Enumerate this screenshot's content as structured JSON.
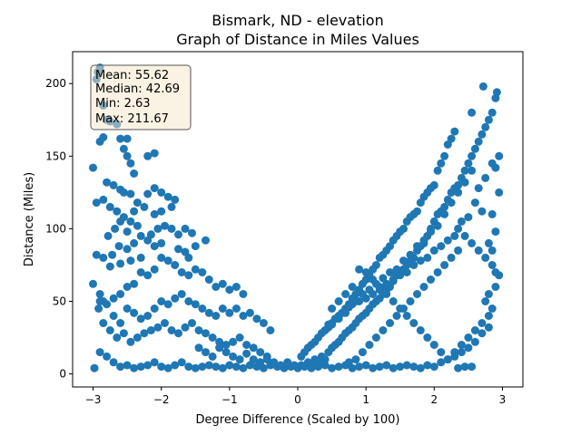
{
  "chart_data": {
    "type": "scatter",
    "title_line1": "Bismark, ND - elevation",
    "title_line2": "Graph of Distance in Miles Values",
    "xlabel": "Degree Difference (Scaled by 100)",
    "ylabel": "Distance (Miles)",
    "xlim": [
      -3.3,
      3.3
    ],
    "ylim": [
      -9,
      222
    ],
    "xticks": [
      -3,
      -2,
      -1,
      0,
      1,
      2,
      3
    ],
    "yticks": [
      0,
      50,
      100,
      150,
      200
    ],
    "grid": false,
    "point_color": "#1f77b4",
    "stats": {
      "mean": "Mean: 55.62",
      "median": "Median: 42.69",
      "min": "Min: 2.63",
      "max": "Max: 211.67"
    },
    "stats_box_fill": "#f5e6c8",
    "points": [
      [
        -2.9,
        211
      ],
      [
        -2.93,
        208
      ],
      [
        -2.95,
        203
      ],
      [
        -2.85,
        185
      ],
      [
        -2.8,
        175
      ],
      [
        -2.75,
        174
      ],
      [
        -2.65,
        172
      ],
      [
        -2.85,
        163
      ],
      [
        -2.9,
        160
      ],
      [
        -2.6,
        162
      ],
      [
        -2.5,
        162
      ],
      [
        -2.55,
        155
      ],
      [
        -2.45,
        145
      ],
      [
        -2.4,
        138
      ],
      [
        -2.5,
        150
      ],
      [
        -2.2,
        150
      ],
      [
        -2.1,
        152
      ],
      [
        -3.0,
        142
      ],
      [
        -2.95,
        118
      ],
      [
        -2.8,
        132
      ],
      [
        -2.7,
        130
      ],
      [
        -2.6,
        127
      ],
      [
        -2.55,
        125
      ],
      [
        -2.45,
        124
      ],
      [
        -2.35,
        118
      ],
      [
        -2.2,
        124
      ],
      [
        -2.1,
        128
      ],
      [
        -2.0,
        125
      ],
      [
        -1.9,
        122
      ],
      [
        -1.8,
        120
      ],
      [
        -1.85,
        115
      ],
      [
        -2.0,
        112
      ],
      [
        -2.1,
        110
      ],
      [
        -2.25,
        115
      ],
      [
        -2.4,
        112
      ],
      [
        -2.55,
        108
      ],
      [
        -2.65,
        112
      ],
      [
        -2.75,
        115
      ],
      [
        -2.85,
        120
      ],
      [
        -2.78,
        95
      ],
      [
        -2.68,
        100
      ],
      [
        -2.6,
        105
      ],
      [
        -2.5,
        98
      ],
      [
        -2.45,
        105
      ],
      [
        -2.35,
        102
      ],
      [
        -2.3,
        95
      ],
      [
        -2.15,
        96
      ],
      [
        -2.05,
        100
      ],
      [
        -1.95,
        102
      ],
      [
        -1.85,
        100
      ],
      [
        -1.75,
        96
      ],
      [
        -1.65,
        100
      ],
      [
        -1.55,
        97
      ],
      [
        -2.0,
        90
      ],
      [
        -2.1,
        88
      ],
      [
        -2.2,
        92
      ],
      [
        -2.4,
        90
      ],
      [
        -2.5,
        86
      ],
      [
        -2.62,
        88
      ],
      [
        -2.72,
        82
      ],
      [
        -2.85,
        80
      ],
      [
        -2.95,
        82
      ],
      [
        -3.0,
        62
      ],
      [
        -2.9,
        55
      ],
      [
        -2.85,
        50
      ],
      [
        -2.8,
        48
      ],
      [
        -2.7,
        52
      ],
      [
        -2.6,
        55
      ],
      [
        -2.5,
        60
      ],
      [
        -2.4,
        62
      ],
      [
        -2.3,
        70
      ],
      [
        -2.2,
        68
      ],
      [
        -2.1,
        72
      ],
      [
        -2.0,
        80
      ],
      [
        -1.9,
        78
      ],
      [
        -1.8,
        75
      ],
      [
        -1.7,
        70
      ],
      [
        -1.6,
        68
      ],
      [
        -1.5,
        72
      ],
      [
        -1.4,
        70
      ],
      [
        -1.3,
        65
      ],
      [
        -1.2,
        60
      ],
      [
        -1.1,
        62
      ],
      [
        -1.0,
        58
      ],
      [
        -0.9,
        60
      ],
      [
        -0.8,
        55
      ],
      [
        -1.75,
        86
      ],
      [
        -1.65,
        84
      ],
      [
        -1.5,
        88
      ],
      [
        -1.35,
        92
      ],
      [
        -1.6,
        80
      ],
      [
        -2.3,
        80
      ],
      [
        -2.45,
        78
      ],
      [
        -2.6,
        76
      ],
      [
        -2.75,
        74
      ],
      [
        -2.9,
        50
      ],
      [
        -2.92,
        45
      ],
      [
        -2.7,
        40
      ],
      [
        -2.6,
        35
      ],
      [
        -2.5,
        45
      ],
      [
        -2.4,
        42
      ],
      [
        -2.3,
        38
      ],
      [
        -2.2,
        40
      ],
      [
        -2.1,
        45
      ],
      [
        -2.0,
        50
      ],
      [
        -1.9,
        48
      ],
      [
        -1.8,
        52
      ],
      [
        -1.7,
        55
      ],
      [
        -1.6,
        50
      ],
      [
        -1.5,
        48
      ],
      [
        -1.4,
        45
      ],
      [
        -1.3,
        42
      ],
      [
        -1.2,
        40
      ],
      [
        -1.1,
        45
      ],
      [
        -1.0,
        42
      ],
      [
        -0.9,
        45
      ],
      [
        -0.8,
        40
      ],
      [
        -0.7,
        42
      ],
      [
        -0.6,
        38
      ],
      [
        -0.5,
        35
      ],
      [
        -0.4,
        30
      ],
      [
        -2.85,
        35
      ],
      [
        -2.75,
        30
      ],
      [
        -2.65,
        25
      ],
      [
        -2.55,
        28
      ],
      [
        -2.45,
        22
      ],
      [
        -2.35,
        25
      ],
      [
        -2.25,
        28
      ],
      [
        -2.15,
        30
      ],
      [
        -2.05,
        32
      ],
      [
        -1.95,
        35
      ],
      [
        -1.85,
        30
      ],
      [
        -1.75,
        28
      ],
      [
        -1.65,
        32
      ],
      [
        -1.55,
        35
      ],
      [
        -1.45,
        30
      ],
      [
        -1.35,
        28
      ],
      [
        -1.25,
        25
      ],
      [
        -1.15,
        22
      ],
      [
        -1.05,
        20
      ],
      [
        -0.95,
        22
      ],
      [
        -0.85,
        25
      ],
      [
        -0.75,
        20
      ],
      [
        -0.65,
        18
      ],
      [
        -0.55,
        15
      ],
      [
        -0.45,
        12
      ],
      [
        -2.9,
        15
      ],
      [
        -2.8,
        12
      ],
      [
        -2.7,
        8
      ],
      [
        -2.6,
        5
      ],
      [
        -2.5,
        6
      ],
      [
        -2.4,
        4
      ],
      [
        -2.3,
        5
      ],
      [
        -2.2,
        6
      ],
      [
        -2.1,
        8
      ],
      [
        -2.0,
        5
      ],
      [
        -1.9,
        4
      ],
      [
        -1.8,
        6
      ],
      [
        -1.7,
        8
      ],
      [
        -1.6,
        5
      ],
      [
        -1.5,
        4
      ],
      [
        -1.4,
        5
      ],
      [
        -1.3,
        6
      ],
      [
        -1.2,
        5
      ],
      [
        -1.1,
        4
      ],
      [
        -1.0,
        6
      ],
      [
        -0.9,
        5
      ],
      [
        -0.8,
        4
      ],
      [
        -0.7,
        6
      ],
      [
        -0.6,
        5
      ],
      [
        -0.5,
        4
      ],
      [
        -0.4,
        6
      ],
      [
        -0.3,
        5
      ],
      [
        -0.2,
        4
      ],
      [
        -0.1,
        5
      ],
      [
        -2.98,
        4
      ],
      [
        -1.45,
        18
      ],
      [
        -1.35,
        15
      ],
      [
        -1.25,
        12
      ],
      [
        -1.15,
        18
      ],
      [
        -1.05,
        15
      ],
      [
        -0.95,
        12
      ],
      [
        -0.85,
        10
      ],
      [
        -0.75,
        14
      ],
      [
        -0.65,
        10
      ],
      [
        -0.55,
        8
      ],
      [
        -0.45,
        10
      ],
      [
        -0.35,
        8
      ],
      [
        -0.25,
        6
      ],
      [
        -0.15,
        8
      ],
      [
        -0.05,
        6
      ],
      [
        0.0,
        4
      ],
      [
        0.05,
        6
      ],
      [
        0.1,
        5
      ],
      [
        0.15,
        8
      ],
      [
        0.2,
        6
      ],
      [
        0.25,
        10
      ],
      [
        0.3,
        8
      ],
      [
        0.35,
        12
      ],
      [
        0.4,
        10
      ],
      [
        0.45,
        15
      ],
      [
        0.5,
        18
      ],
      [
        0.55,
        20
      ],
      [
        0.6,
        22
      ],
      [
        0.65,
        25
      ],
      [
        0.7,
        28
      ],
      [
        0.75,
        30
      ],
      [
        0.8,
        32
      ],
      [
        0.85,
        35
      ],
      [
        0.9,
        38
      ],
      [
        0.95,
        40
      ],
      [
        1.0,
        42
      ],
      [
        1.05,
        45
      ],
      [
        1.1,
        48
      ],
      [
        1.15,
        50
      ],
      [
        1.2,
        52
      ],
      [
        1.25,
        55
      ],
      [
        1.3,
        58
      ],
      [
        1.35,
        60
      ],
      [
        1.4,
        65
      ],
      [
        1.45,
        68
      ],
      [
        1.5,
        70
      ],
      [
        1.55,
        72
      ],
      [
        1.6,
        75
      ],
      [
        1.65,
        78
      ],
      [
        1.7,
        80
      ],
      [
        1.75,
        85
      ],
      [
        1.8,
        88
      ],
      [
        1.85,
        90
      ],
      [
        1.9,
        95
      ],
      [
        1.95,
        100
      ],
      [
        2.0,
        105
      ],
      [
        2.05,
        110
      ],
      [
        2.1,
        112
      ],
      [
        2.15,
        115
      ],
      [
        2.2,
        120
      ],
      [
        2.25,
        125
      ],
      [
        2.3,
        128
      ],
      [
        2.35,
        130
      ],
      [
        2.4,
        135
      ],
      [
        2.45,
        140
      ],
      [
        2.5,
        145
      ],
      [
        2.55,
        150
      ],
      [
        2.6,
        155
      ],
      [
        2.65,
        160
      ],
      [
        2.7,
        165
      ],
      [
        2.75,
        170
      ],
      [
        2.8,
        175
      ],
      [
        2.85,
        180
      ],
      [
        2.9,
        190
      ],
      [
        2.92,
        194
      ],
      [
        2.72,
        198
      ],
      [
        2.55,
        180
      ],
      [
        2.3,
        167
      ],
      [
        2.25,
        162
      ],
      [
        2.2,
        158
      ],
      [
        2.15,
        150
      ],
      [
        2.1,
        145
      ],
      [
        2.05,
        140
      ],
      [
        2.0,
        130
      ],
      [
        1.95,
        128
      ],
      [
        1.9,
        125
      ],
      [
        1.85,
        122
      ],
      [
        1.8,
        118
      ],
      [
        1.75,
        112
      ],
      [
        1.7,
        110
      ],
      [
        1.65,
        108
      ],
      [
        1.6,
        105
      ],
      [
        1.55,
        100
      ],
      [
        1.5,
        98
      ],
      [
        1.45,
        95
      ],
      [
        1.4,
        92
      ],
      [
        1.35,
        88
      ],
      [
        1.3,
        85
      ],
      [
        1.25,
        82
      ],
      [
        1.2,
        80
      ],
      [
        1.15,
        75
      ],
      [
        1.1,
        72
      ],
      [
        1.05,
        68
      ],
      [
        1.0,
        65
      ],
      [
        0.95,
        62
      ],
      [
        0.9,
        58
      ],
      [
        0.85,
        55
      ],
      [
        0.8,
        52
      ],
      [
        0.75,
        48
      ],
      [
        0.7,
        45
      ],
      [
        0.65,
        42
      ],
      [
        0.6,
        40
      ],
      [
        0.55,
        38
      ],
      [
        0.5,
        35
      ],
      [
        0.45,
        32
      ],
      [
        0.4,
        30
      ],
      [
        0.35,
        28
      ],
      [
        0.3,
        25
      ],
      [
        0.25,
        22
      ],
      [
        0.2,
        20
      ],
      [
        0.15,
        18
      ],
      [
        0.1,
        15
      ],
      [
        0.05,
        12
      ],
      [
        2.95,
        150
      ],
      [
        2.9,
        142
      ],
      [
        2.95,
        125
      ],
      [
        2.85,
        110
      ],
      [
        2.9,
        98
      ],
      [
        2.8,
        90
      ],
      [
        2.85,
        85
      ],
      [
        2.95,
        68
      ],
      [
        2.9,
        60
      ],
      [
        2.8,
        55
      ],
      [
        2.75,
        50
      ],
      [
        2.85,
        45
      ],
      [
        2.8,
        40
      ],
      [
        2.7,
        35
      ],
      [
        2.6,
        30
      ],
      [
        2.5,
        25
      ],
      [
        2.4,
        20
      ],
      [
        2.3,
        15
      ],
      [
        2.2,
        10
      ],
      [
        2.1,
        8
      ],
      [
        2.0,
        5
      ],
      [
        1.9,
        6
      ],
      [
        1.8,
        4
      ],
      [
        1.7,
        5
      ],
      [
        1.6,
        6
      ],
      [
        1.5,
        5
      ],
      [
        1.4,
        4
      ],
      [
        1.3,
        6
      ],
      [
        1.2,
        5
      ],
      [
        1.1,
        4
      ],
      [
        1.0,
        6
      ],
      [
        0.9,
        5
      ],
      [
        0.8,
        4
      ],
      [
        0.7,
        6
      ],
      [
        0.6,
        5
      ],
      [
        0.5,
        4
      ],
      [
        0.4,
        6
      ],
      [
        0.3,
        5
      ],
      [
        0.2,
        4
      ],
      [
        2.45,
        5
      ],
      [
        2.35,
        4
      ],
      [
        2.55,
        5
      ],
      [
        2.6,
        118
      ],
      [
        2.7,
        112
      ],
      [
        2.5,
        108
      ],
      [
        2.4,
        105
      ],
      [
        2.35,
        100
      ],
      [
        2.3,
        95
      ],
      [
        2.2,
        92
      ],
      [
        2.1,
        88
      ],
      [
        2.0,
        85
      ],
      [
        1.9,
        80
      ],
      [
        1.8,
        78
      ],
      [
        1.7,
        75
      ],
      [
        1.6,
        70
      ],
      [
        1.5,
        68
      ],
      [
        1.4,
        64
      ],
      [
        1.3,
        62
      ],
      [
        1.2,
        58
      ],
      [
        1.1,
        55
      ],
      [
        1.0,
        52
      ],
      [
        0.9,
        50
      ],
      [
        0.8,
        48
      ],
      [
        0.7,
        42
      ],
      [
        0.6,
        38
      ],
      [
        0.5,
        34
      ],
      [
        0.4,
        30
      ],
      [
        2.65,
        128
      ],
      [
        2.75,
        135
      ],
      [
        2.85,
        145
      ],
      [
        2.55,
        140
      ],
      [
        2.45,
        132
      ],
      [
        2.35,
        125
      ],
      [
        2.25,
        118
      ],
      [
        2.15,
        110
      ],
      [
        2.05,
        102
      ],
      [
        1.95,
        98
      ],
      [
        1.85,
        92
      ],
      [
        1.75,
        88
      ],
      [
        1.65,
        82
      ],
      [
        1.55,
        78
      ],
      [
        1.45,
        72
      ],
      [
        1.35,
        70
      ],
      [
        1.25,
        66
      ],
      [
        1.15,
        62
      ],
      [
        1.05,
        58
      ],
      [
        0.95,
        55
      ],
      [
        0.85,
        50
      ],
      [
        0.75,
        46
      ],
      [
        0.65,
        42
      ],
      [
        0.55,
        38
      ],
      [
        0.45,
        34
      ],
      [
        2.9,
        70
      ],
      [
        2.85,
        75
      ],
      [
        2.75,
        80
      ],
      [
        2.65,
        85
      ],
      [
        2.55,
        90
      ],
      [
        2.45,
        95
      ],
      [
        2.35,
        85
      ],
      [
        2.25,
        80
      ],
      [
        2.15,
        75
      ],
      [
        2.05,
        70
      ],
      [
        1.95,
        65
      ],
      [
        1.85,
        60
      ],
      [
        1.75,
        55
      ],
      [
        1.65,
        50
      ],
      [
        1.55,
        45
      ],
      [
        1.45,
        40
      ],
      [
        1.35,
        35
      ],
      [
        1.25,
        30
      ],
      [
        1.15,
        25
      ],
      [
        1.05,
        20
      ],
      [
        0.95,
        15
      ],
      [
        0.85,
        10
      ],
      [
        0.75,
        8
      ],
      [
        2.8,
        32
      ],
      [
        2.7,
        28
      ],
      [
        2.6,
        22
      ],
      [
        2.5,
        18
      ],
      [
        2.4,
        15
      ],
      [
        2.3,
        12
      ],
      [
        2.2,
        10
      ],
      [
        2.1,
        15
      ],
      [
        2.0,
        20
      ],
      [
        1.9,
        25
      ],
      [
        1.8,
        30
      ],
      [
        1.7,
        35
      ],
      [
        1.6,
        40
      ],
      [
        1.5,
        45
      ],
      [
        1.4,
        50
      ],
      [
        1.3,
        55
      ],
      [
        1.2,
        60
      ],
      [
        1.1,
        65
      ],
      [
        1.0,
        70
      ],
      [
        0.9,
        72
      ],
      [
        0.8,
        60
      ],
      [
        0.7,
        55
      ],
      [
        0.6,
        50
      ],
      [
        0.5,
        45
      ]
    ]
  }
}
